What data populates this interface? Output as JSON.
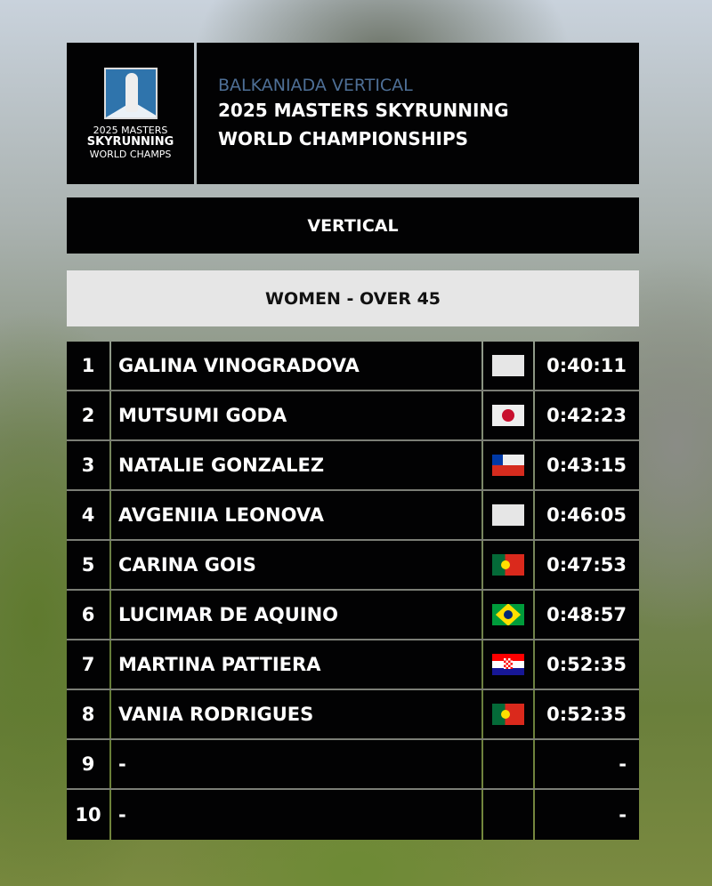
{
  "logo": {
    "line1": "2025 MASTERS",
    "line2": "SKYRUNNING",
    "line3": "WORLD CHAMPS"
  },
  "header": {
    "subtitle": "BALKANIADA VERTICAL",
    "title_line1": "2025 MASTERS SKYRUNNING",
    "title_line2": "WORLD CHAMPIONSHIPS"
  },
  "race": "VERTICAL",
  "category": "WOMEN - OVER 45",
  "results": [
    {
      "rank": "1",
      "name": "GALINA VINOGRADOVA",
      "flag": "blank",
      "time": "0:40:11"
    },
    {
      "rank": "2",
      "name": "MUTSUMI GODA",
      "flag": "japan",
      "time": "0:42:23"
    },
    {
      "rank": "3",
      "name": "NATALIE GONZALEZ",
      "flag": "chile",
      "time": "0:43:15"
    },
    {
      "rank": "4",
      "name": "AVGENIIA LEONOVA",
      "flag": "blank",
      "time": "0:46:05"
    },
    {
      "rank": "5",
      "name": "CARINA GOIS",
      "flag": "portugal",
      "time": "0:47:53"
    },
    {
      "rank": "6",
      "name": "LUCIMAR DE AQUINO",
      "flag": "brazil",
      "time": "0:48:57"
    },
    {
      "rank": "7",
      "name": "MARTINA PATTIERA",
      "flag": "croatia",
      "time": "0:52:35"
    },
    {
      "rank": "8",
      "name": "VANIA RODRIGUES",
      "flag": "portugal",
      "time": "0:52:35"
    },
    {
      "rank": "9",
      "name": "-",
      "flag": "none",
      "time": "-"
    },
    {
      "rank": "10",
      "name": "-",
      "flag": "none",
      "time": "-"
    }
  ]
}
